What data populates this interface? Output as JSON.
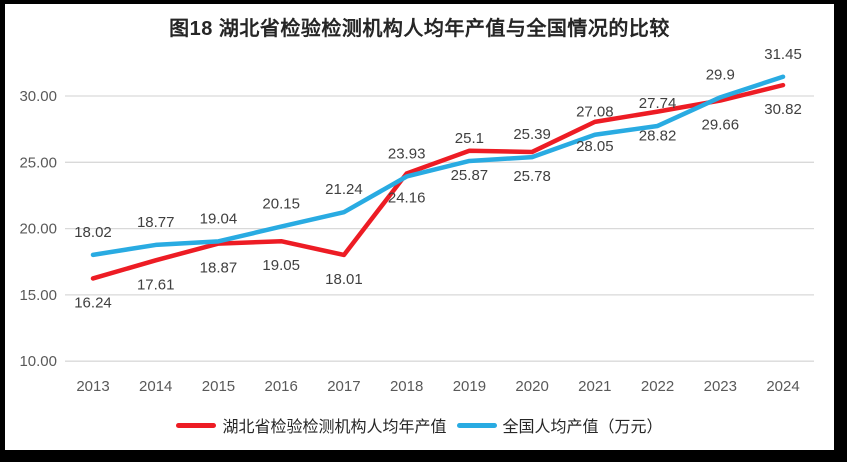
{
  "title": "图18  湖北省检验检测机构人均年产值与全国情况的比较",
  "chart_data": {
    "type": "line",
    "categories": [
      "2013",
      "2014",
      "2015",
      "2016",
      "2017",
      "2018",
      "2019",
      "2020",
      "2021",
      "2022",
      "2023",
      "2024"
    ],
    "series": [
      {
        "name": "湖北省检验检测机构人均年产值",
        "color": "#ED1C24",
        "values": [
          16.24,
          17.61,
          18.87,
          19.05,
          18.01,
          24.16,
          25.87,
          25.78,
          28.05,
          28.82,
          29.66,
          30.82
        ],
        "label_position": "below"
      },
      {
        "name": "全国人均产值（万元）",
        "color": "#29ABE2",
        "values": [
          18.02,
          18.77,
          19.04,
          20.15,
          21.24,
          23.93,
          25.1,
          25.39,
          27.08,
          27.74,
          29.9,
          31.45
        ],
        "label_position": "above"
      }
    ],
    "title": "图18  湖北省检验检测机构人均年产值与全国情况的比较",
    "xlabel": "",
    "ylabel": "",
    "ylim": [
      10,
      32
    ],
    "yticks": [
      {
        "value": 30,
        "label": "30.00"
      },
      {
        "value": 25,
        "label": "25.00"
      },
      {
        "value": 20,
        "label": "20.00"
      },
      {
        "value": 15,
        "label": "15.00"
      },
      {
        "value": 10,
        "label": "10.00"
      }
    ],
    "grid": "horizontal-only",
    "legend_position": "bottom",
    "data_labels": true
  },
  "colors": {
    "gridline": "#D9D9D9",
    "axis_text": "#595959",
    "data_label_text": "#404040",
    "title_text": "#262626",
    "frame_border": "#000000"
  }
}
